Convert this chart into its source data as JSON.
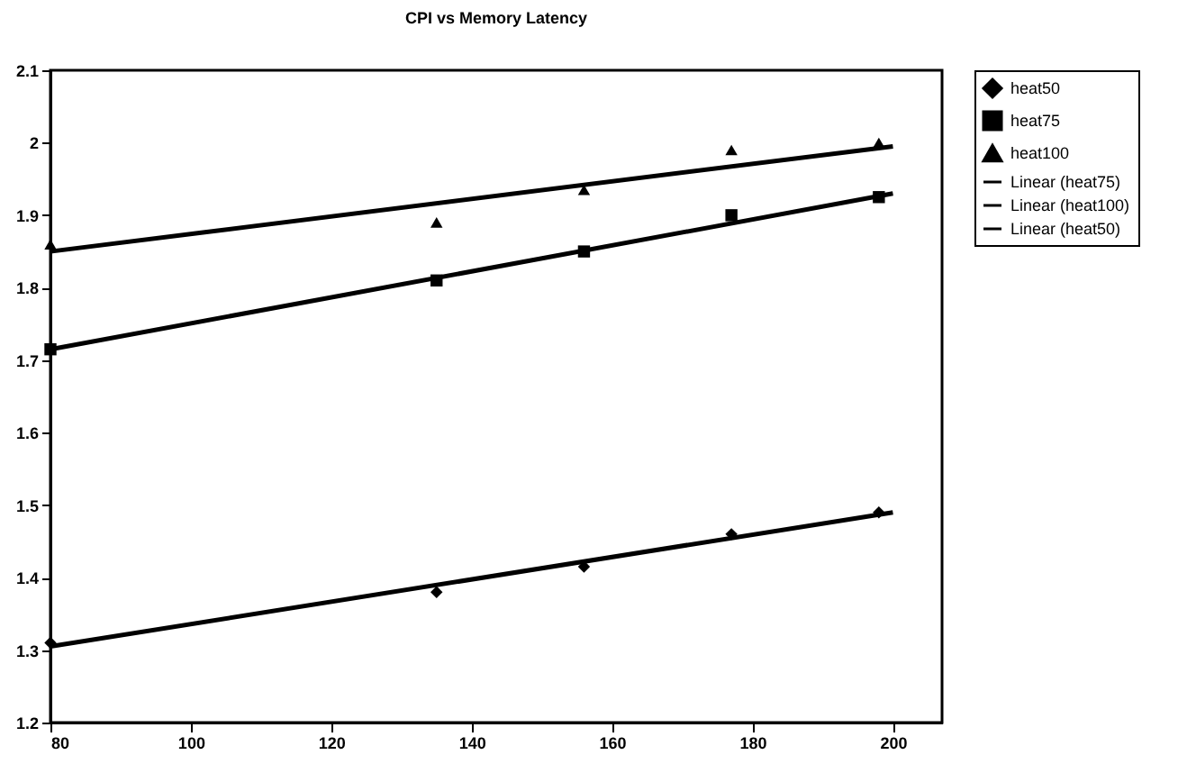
{
  "chart_data": {
    "type": "scatter",
    "title": "CPI vs Memory Latency",
    "xlim": [
      80,
      207
    ],
    "xticks": [
      80,
      100,
      120,
      140,
      160,
      180,
      200
    ],
    "ylim": [
      1.2,
      2.1
    ],
    "yticks": [
      1.2,
      1.3,
      1.4,
      1.5,
      1.6,
      1.7,
      1.8,
      1.9,
      2,
      2.1
    ],
    "grid": false,
    "legend": "right",
    "series": [
      {
        "name": "heat50",
        "marker": "diamond",
        "color": "#000000",
        "x": [
          80,
          135,
          156,
          177,
          198
        ],
        "values": [
          1.31,
          1.38,
          1.415,
          1.46,
          1.49
        ]
      },
      {
        "name": "heat75",
        "marker": "square",
        "color": "#000000",
        "x": [
          80,
          135,
          156,
          177,
          198
        ],
        "values": [
          1.715,
          1.81,
          1.85,
          1.9,
          1.925
        ]
      },
      {
        "name": "heat100",
        "marker": "triangle",
        "color": "#000000",
        "x": [
          80,
          135,
          156,
          177,
          198
        ],
        "values": [
          1.86,
          1.89,
          1.935,
          1.99,
          2.0
        ]
      },
      {
        "name": "Linear (heat75)",
        "type": "line",
        "marker": "none",
        "color": "#000000",
        "x": [
          80,
          200
        ],
        "values": [
          1.715,
          1.93
        ]
      },
      {
        "name": "Linear (heat100)",
        "type": "line",
        "marker": "none",
        "color": "#000000",
        "x": [
          80,
          200
        ],
        "values": [
          1.85,
          1.995
        ]
      },
      {
        "name": "Linear (heat50)",
        "type": "line",
        "marker": "none",
        "color": "#000000",
        "x": [
          80,
          200
        ],
        "values": [
          1.305,
          1.49
        ]
      }
    ]
  }
}
